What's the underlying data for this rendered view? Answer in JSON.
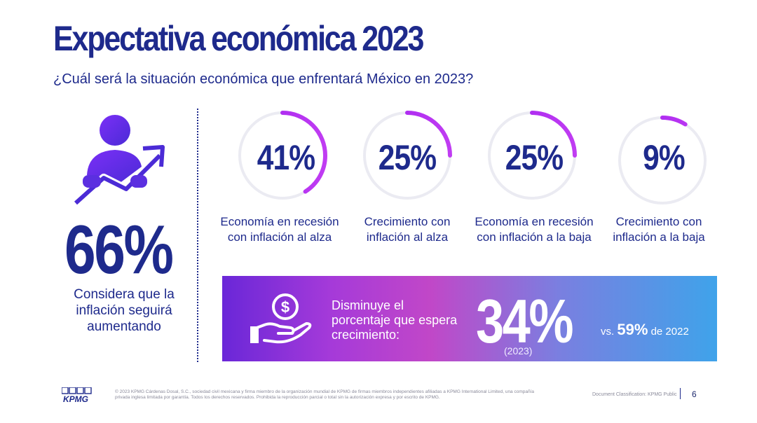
{
  "title": "Expectativa económica 2023",
  "subtitle": "¿Cuál será la situación económica que enfrentará México en 2023?",
  "headline": {
    "value": "66%",
    "caption": "Considera que la inflación seguirá aumentando"
  },
  "chart_data": {
    "type": "donut",
    "categories": [
      "Economía en recesión con inflación al alza",
      "Crecimiento con inflación al alza",
      "Economía en recesión con inflación a la baja",
      "Crecimiento con inflación a la baja"
    ],
    "values": [
      41,
      25,
      25,
      9
    ],
    "value_labels": [
      "41%",
      "25%",
      "25%",
      "9%"
    ],
    "range": [
      0,
      100
    ]
  },
  "banner": {
    "text": "Disminuye el porcentaje que espera crecimiento:",
    "value": "34%",
    "year": "(2023)",
    "vs_prefix": "vs.",
    "vs_value": "59%",
    "vs_suffix": "de 2022"
  },
  "footer": {
    "logo": "KPMG",
    "legal": "© 2023 KPMG Cárdenas Dosal, S.C., sociedad civil mexicana y firma miembro de la organización mundial de KPMG de firmas miembros independientes afiliadas a KPMG International Limited, una compañía privada inglesa limitada por garantía. Todos los derechos reservados. Prohibida la reproducción parcial o total sin la autorización expresa y por escrito de KPMG.",
    "classification": "Document Classification: KPMG Public",
    "page": "6"
  },
  "colors": {
    "navy": "#1e2a8c",
    "purple": "#a020f0",
    "ring_track": "#ebebf2"
  }
}
